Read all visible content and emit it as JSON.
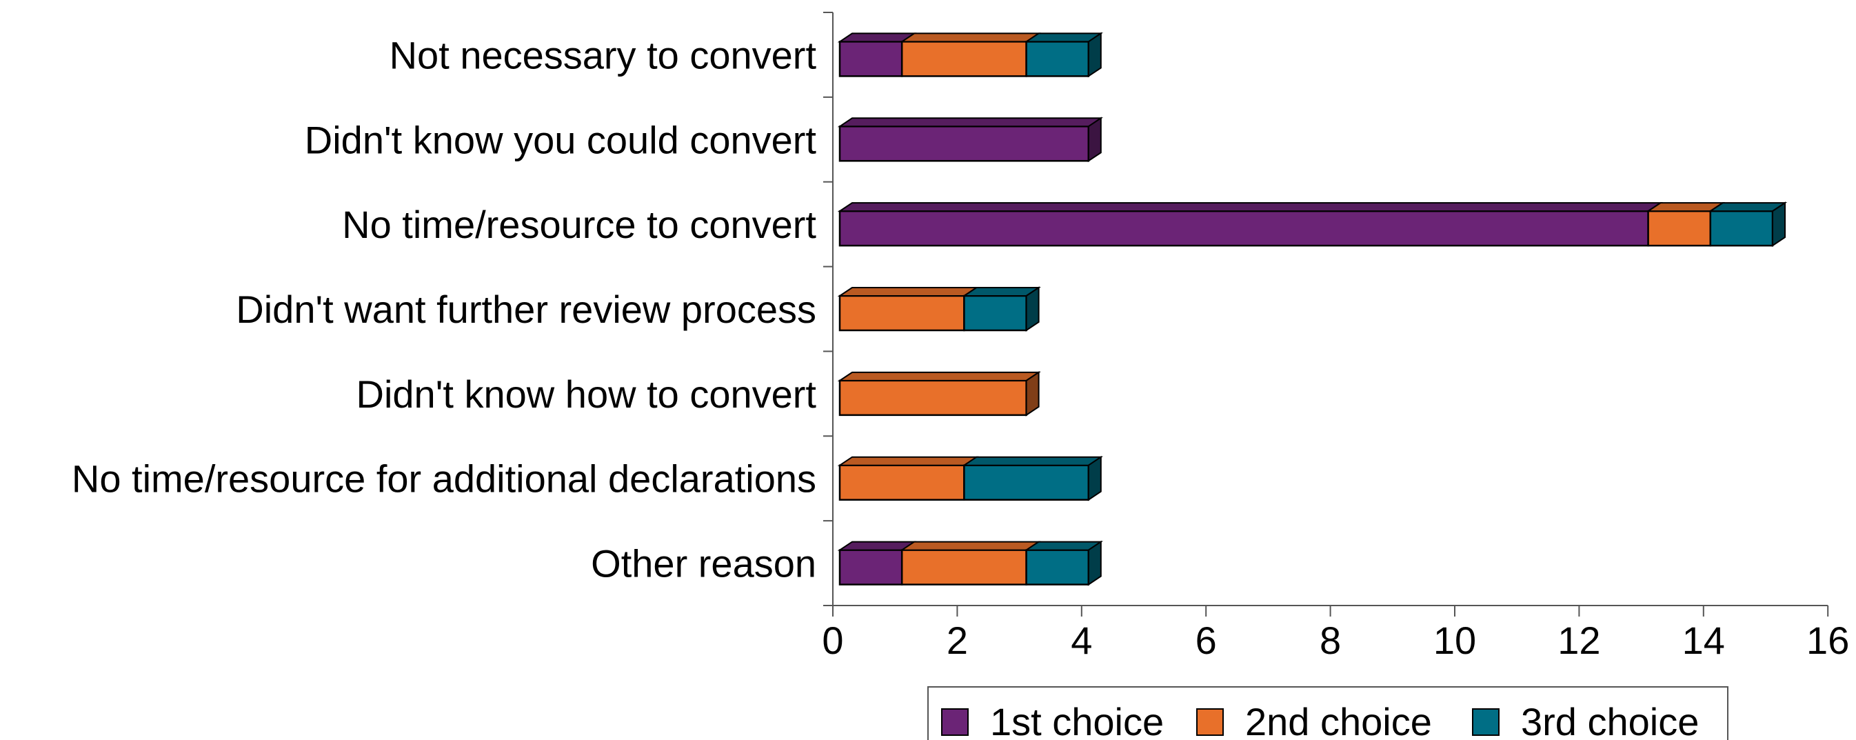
{
  "chart_data": {
    "type": "bar",
    "orientation": "horizontal",
    "stacked": true,
    "three_d": true,
    "categories": [
      "Not necessary to convert",
      "Didn't know you could convert",
      "No time/resource to convert",
      "Didn't want further review process",
      "Didn't know how to convert",
      "No time/resource for additional declarations",
      "Other reason"
    ],
    "series": [
      {
        "name": "1st choice",
        "color": "#6b2476",
        "values": [
          1,
          4,
          13,
          0,
          0,
          0,
          1
        ]
      },
      {
        "name": "2nd choice",
        "color": "#e8702a",
        "values": [
          2,
          0,
          1,
          2,
          3,
          2,
          2
        ]
      },
      {
        "name": "3rd choice",
        "color": "#006e85",
        "values": [
          1,
          0,
          1,
          1,
          0,
          2,
          1
        ]
      }
    ],
    "xlim": [
      0,
      16
    ],
    "xticks": [
      "0",
      "2",
      "4",
      "6",
      "8",
      "10",
      "12",
      "14",
      "16"
    ],
    "grid": false,
    "legend_position": "bottom"
  }
}
